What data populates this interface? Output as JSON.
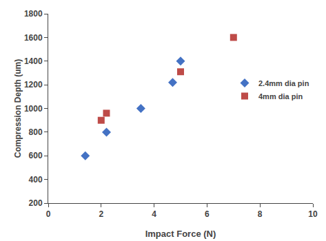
{
  "chart_data": {
    "type": "scatter",
    "xlabel": "Impact Force (N)",
    "ylabel": "Compression Depth (um)",
    "series": [
      {
        "name": "2.4mm dia pin",
        "color": "#4472C4",
        "marker": "diamond",
        "x": [
          1.4,
          2.2,
          3.5,
          4.7,
          5.0
        ],
        "values": [
          600,
          800,
          1000,
          1220,
          1400
        ]
      },
      {
        "name": "4mm dia pin",
        "color": "#BE4B48",
        "marker": "square",
        "x": [
          2.0,
          2.2,
          5.0,
          7.0
        ],
        "values": [
          900,
          960,
          1310,
          1600
        ]
      }
    ],
    "xlim": [
      0,
      10
    ],
    "ylim": [
      200,
      1800
    ],
    "xticks": [
      0,
      2,
      4,
      6,
      8,
      10
    ],
    "yticks": [
      200,
      400,
      600,
      800,
      1000,
      1200,
      1400,
      1600,
      1800
    ],
    "grid": false,
    "legend": "right"
  }
}
